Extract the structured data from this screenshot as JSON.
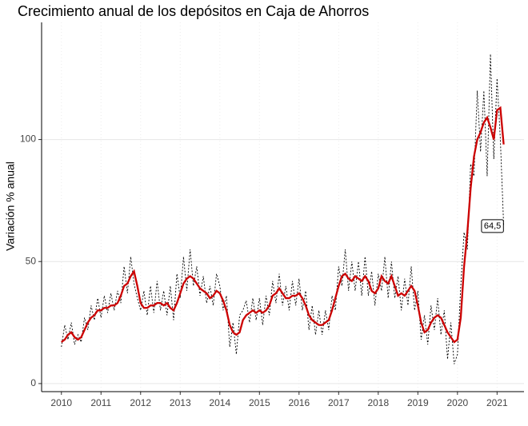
{
  "chart_data": {
    "type": "line",
    "title": "Crecimiento anual de los depósitos en Caja de Ahorros",
    "y_label": "Variación % anual",
    "annotation": "64,5",
    "x": [
      2010,
      2010.083,
      2010.167,
      2010.25,
      2010.333,
      2010.417,
      2010.5,
      2010.583,
      2010.667,
      2010.75,
      2010.833,
      2010.917,
      2011,
      2011.083,
      2011.167,
      2011.25,
      2011.333,
      2011.417,
      2011.5,
      2011.583,
      2011.667,
      2011.75,
      2011.833,
      2011.917,
      2012,
      2012.083,
      2012.167,
      2012.25,
      2012.333,
      2012.417,
      2012.5,
      2012.583,
      2012.667,
      2012.75,
      2012.833,
      2012.917,
      2013,
      2013.083,
      2013.167,
      2013.25,
      2013.333,
      2013.417,
      2013.5,
      2013.583,
      2013.667,
      2013.75,
      2013.833,
      2013.917,
      2014,
      2014.083,
      2014.167,
      2014.25,
      2014.333,
      2014.417,
      2014.5,
      2014.583,
      2014.667,
      2014.75,
      2014.833,
      2014.917,
      2015,
      2015.083,
      2015.167,
      2015.25,
      2015.333,
      2015.417,
      2015.5,
      2015.583,
      2015.667,
      2015.75,
      2015.833,
      2015.917,
      2016,
      2016.083,
      2016.167,
      2016.25,
      2016.333,
      2016.417,
      2016.5,
      2016.583,
      2016.667,
      2016.75,
      2016.833,
      2016.917,
      2017,
      2017.083,
      2017.167,
      2017.25,
      2017.333,
      2017.417,
      2017.5,
      2017.583,
      2017.667,
      2017.75,
      2017.833,
      2017.917,
      2018,
      2018.083,
      2018.167,
      2018.25,
      2018.333,
      2018.417,
      2018.5,
      2018.583,
      2018.667,
      2018.75,
      2018.833,
      2018.917,
      2019,
      2019.083,
      2019.167,
      2019.25,
      2019.333,
      2019.417,
      2019.5,
      2019.583,
      2019.667,
      2019.75,
      2019.833,
      2019.917,
      2020,
      2020.083,
      2020.167,
      2020.25,
      2020.333,
      2020.417,
      2020.5,
      2020.583,
      2020.667,
      2020.75,
      2020.833,
      2020.917,
      2021,
      2021.083,
      2021.167
    ],
    "series": [
      {
        "color": "#000000",
        "style": "dotted",
        "values": [
          15,
          24,
          18,
          25,
          16,
          20,
          17,
          27,
          22,
          32,
          26,
          35,
          27,
          36,
          29,
          37,
          30,
          38,
          33,
          48,
          37,
          52,
          41,
          35,
          30,
          38,
          28,
          40,
          29,
          42,
          30,
          38,
          28,
          40,
          26,
          45,
          35,
          52,
          38,
          55,
          40,
          48,
          36,
          44,
          33,
          40,
          32,
          45,
          40,
          30,
          36,
          15,
          25,
          12,
          28,
          30,
          34,
          25,
          35,
          26,
          35,
          24,
          36,
          28,
          42,
          33,
          45,
          32,
          40,
          30,
          42,
          32,
          43,
          30,
          38,
          22,
          32,
          20,
          30,
          20,
          30,
          22,
          36,
          30,
          48,
          40,
          55,
          38,
          50,
          38,
          50,
          36,
          52,
          36,
          46,
          32,
          45,
          38,
          52,
          35,
          50,
          35,
          44,
          30,
          43,
          32,
          48,
          30,
          38,
          18,
          28,
          16,
          32,
          22,
          35,
          20,
          30,
          10,
          25,
          8,
          12,
          40,
          62,
          55,
          90,
          85,
          120,
          95,
          120,
          85,
          135,
          92,
          125,
          100,
          64.5
        ]
      },
      {
        "color": "#cc0000",
        "style": "solid",
        "values": [
          17,
          18,
          20,
          21,
          19,
          18,
          19,
          22,
          25,
          27,
          28,
          30,
          30,
          31,
          31,
          32,
          32,
          33,
          36,
          40,
          41,
          44,
          46,
          40,
          33,
          31,
          31,
          32,
          32,
          33,
          33,
          32,
          33,
          31,
          30,
          33,
          37,
          41,
          43,
          44,
          43,
          41,
          39,
          38,
          37,
          35,
          36,
          38,
          37,
          34,
          30,
          24,
          21,
          20,
          21,
          26,
          28,
          29,
          30,
          29,
          30,
          29,
          30,
          32,
          36,
          37,
          39,
          37,
          35,
          35,
          36,
          36,
          37,
          35,
          32,
          28,
          26,
          25,
          24,
          24,
          25,
          26,
          30,
          35,
          40,
          44,
          45,
          43,
          42,
          44,
          43,
          42,
          44,
          42,
          38,
          37,
          39,
          44,
          42,
          41,
          44,
          40,
          36,
          37,
          36,
          38,
          40,
          38,
          32,
          25,
          21,
          22,
          25,
          27,
          28,
          27,
          24,
          21,
          19,
          17,
          18,
          27,
          48,
          62,
          80,
          93,
          100,
          103,
          107,
          109,
          105,
          100,
          112,
          113,
          98
        ]
      }
    ],
    "xlim": [
      2009.5,
      2021.68
    ],
    "ylim": [
      -3.3,
      148
    ],
    "xticks": [
      2010,
      2011,
      2012,
      2013,
      2014,
      2015,
      2016,
      2017,
      2018,
      2019,
      2020,
      2021
    ],
    "yticks": [
      0,
      50,
      100
    ],
    "grid": true
  }
}
